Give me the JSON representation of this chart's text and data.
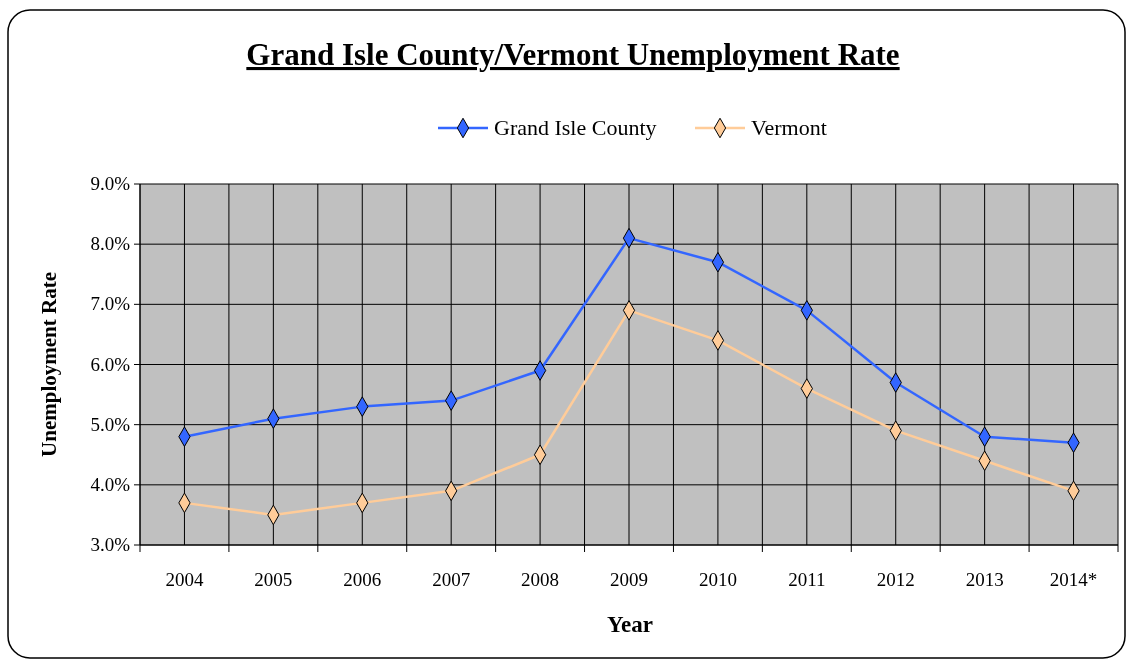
{
  "chart_data": {
    "type": "line",
    "title": "Grand Isle County/Vermont Unemployment Rate",
    "xlabel": "Year",
    "ylabel": "Unemployment Rate",
    "categories": [
      "2004",
      "2005",
      "2006",
      "2007",
      "2008",
      "2009",
      "2010",
      "2011",
      "2012",
      "2013",
      "2014*"
    ],
    "series": [
      {
        "name": "Grand Isle County",
        "color": "#3366ff",
        "values": [
          4.8,
          5.1,
          5.3,
          5.4,
          5.9,
          8.1,
          7.7,
          6.9,
          5.7,
          4.8,
          4.7
        ]
      },
      {
        "name": "Vermont",
        "color": "#ffcc99",
        "values": [
          3.7,
          3.5,
          3.7,
          3.9,
          4.5,
          6.9,
          6.4,
          5.6,
          4.9,
          4.4,
          3.9
        ]
      }
    ],
    "ylim": [
      3,
      9
    ],
    "yticks": [
      {
        "value": 3,
        "label": "3.0%"
      },
      {
        "value": 4,
        "label": "4.0%"
      },
      {
        "value": 5,
        "label": "5.0%"
      },
      {
        "value": 6,
        "label": "6.0%"
      },
      {
        "value": 7,
        "label": "7.0%"
      },
      {
        "value": 8,
        "label": "8.0%"
      },
      {
        "value": 9,
        "label": "9.0%"
      }
    ],
    "grid": true,
    "legend": "top",
    "marker": "diamond",
    "line_style": "solid"
  }
}
